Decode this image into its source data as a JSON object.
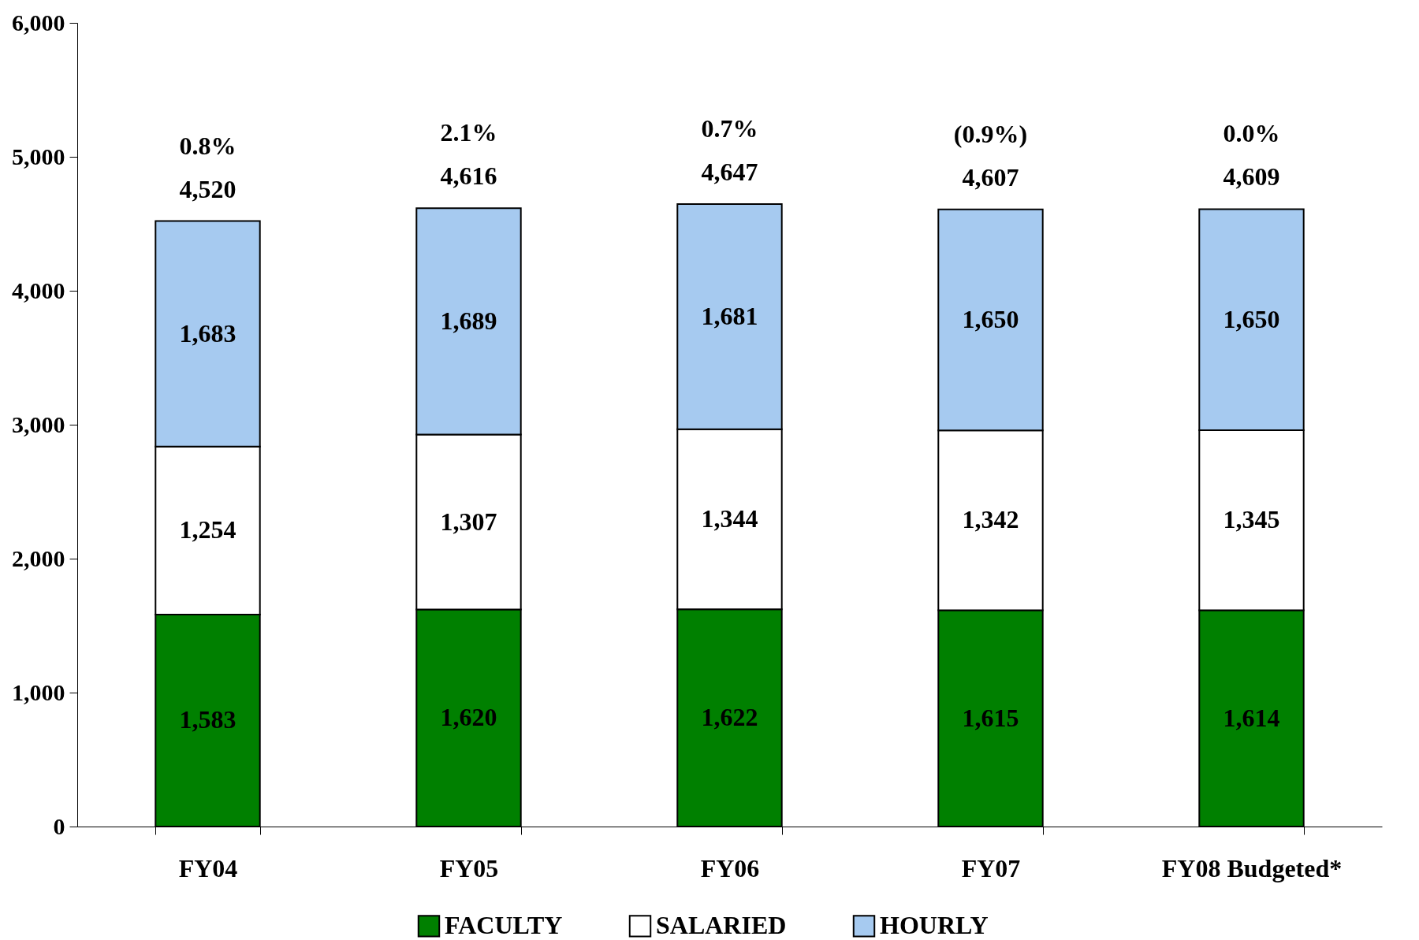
{
  "chart_data": {
    "type": "bar",
    "stacked": true,
    "legend": "bottom",
    "grid": false,
    "categories": [
      "FY04",
      "FY05",
      "FY06",
      "FY07",
      "FY08 Budgeted*"
    ],
    "series": [
      {
        "name": "FACULTY",
        "color": "#008000",
        "values": [
          1583,
          1620,
          1622,
          1615,
          1614
        ],
        "value_labels": [
          "1,583",
          "1,620",
          "1,622",
          "1,615",
          "1,614"
        ]
      },
      {
        "name": "SALARIED",
        "color": "#ffffff",
        "values": [
          1254,
          1307,
          1344,
          1342,
          1345
        ],
        "value_labels": [
          "1,254",
          "1,307",
          "1,344",
          "1,342",
          "1,345"
        ]
      },
      {
        "name": "HOURLY",
        "color": "#a6caf0",
        "values": [
          1683,
          1689,
          1681,
          1650,
          1650
        ],
        "value_labels": [
          "1,683",
          "1,689",
          "1,681",
          "1,650",
          "1,650"
        ]
      }
    ],
    "totals": [
      "4,520",
      "4,616",
      "4,647",
      "4,607",
      "4,609"
    ],
    "annotations": [
      "0.8%",
      "2.1%",
      "0.7%",
      "(0.9%)",
      "0.0%"
    ],
    "ylim": [
      0,
      6000
    ],
    "yticks": [
      {
        "value": 0,
        "label": "0"
      },
      {
        "value": 1000,
        "label": "1,000"
      },
      {
        "value": 2000,
        "label": "2,000"
      },
      {
        "value": 3000,
        "label": "3,000"
      },
      {
        "value": 4000,
        "label": "4,000"
      },
      {
        "value": 5000,
        "label": "5,000"
      },
      {
        "value": 6000,
        "label": "6,000"
      }
    ]
  }
}
